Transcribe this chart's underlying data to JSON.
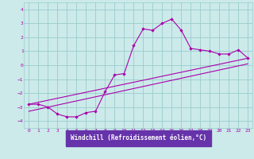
{
  "xlabel": "Windchill (Refroidissement éolien,°C)",
  "background_color": "#cceaea",
  "plot_bg_color": "#cceaea",
  "label_bg_color": "#6633aa",
  "line_color": "#aa00aa",
  "grid_color": "#99cccc",
  "xlim": [
    -0.5,
    23.5
  ],
  "ylim": [
    -4.5,
    4.5
  ],
  "xticks": [
    0,
    1,
    2,
    3,
    4,
    5,
    6,
    7,
    8,
    9,
    10,
    11,
    12,
    13,
    14,
    15,
    16,
    17,
    18,
    19,
    20,
    21,
    22,
    23
  ],
  "yticks": [
    -4,
    -3,
    -2,
    -1,
    0,
    1,
    2,
    3,
    4
  ],
  "main_x": [
    0,
    1,
    2,
    3,
    4,
    5,
    6,
    7,
    8,
    9,
    10,
    11,
    12,
    13,
    14,
    15,
    16,
    17,
    18,
    19,
    20,
    21,
    22,
    23
  ],
  "main_y": [
    -2.8,
    -2.8,
    -3.0,
    -3.5,
    -3.7,
    -3.7,
    -3.4,
    -3.3,
    -1.9,
    -0.7,
    -0.6,
    1.4,
    2.6,
    2.5,
    3.0,
    3.3,
    2.5,
    1.2,
    1.1,
    1.0,
    0.8,
    0.8,
    1.1,
    0.5
  ],
  "line1_x": [
    0,
    23
  ],
  "line1_y": [
    -2.8,
    0.5
  ],
  "line2_x": [
    0,
    23
  ],
  "line2_y": [
    -3.3,
    0.1
  ]
}
